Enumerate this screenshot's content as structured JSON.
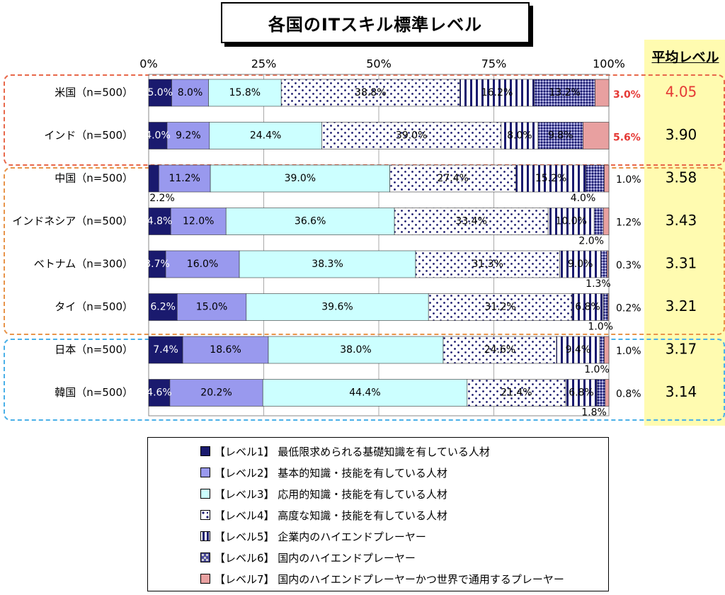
{
  "title": "各国のITスキル標準レベル",
  "avg_header": "平均レベル",
  "colors": {
    "l1": "#1a1a6e",
    "l2": "#9999ee",
    "l3": "#ccffff",
    "l4_dot": "#1a1a6e",
    "l5_stripe": "#1a1a6e",
    "l6_fill": "#4a4a9a",
    "l7": "#e8a0a0",
    "group_usa_india": "#e8684a",
    "group_asia": "#e8944a",
    "group_japan_korea": "#4ab0e8",
    "avg_panel": "#fffbb0",
    "highlight_red": "#e53935"
  },
  "chart_data": {
    "type": "bar",
    "orientation": "horizontal",
    "stacked": true,
    "percent": true,
    "title": "各国のITスキル標準レベル",
    "xlim": [
      0,
      100
    ],
    "x_ticks": [
      "0%",
      "25%",
      "50%",
      "75%",
      "100%"
    ],
    "categories": [
      "米国（n=500）",
      "インド（n=500）",
      "中国（n=500）",
      "インドネシア（n=500）",
      "ベトナム（n=300）",
      "タイ（n=500）",
      "日本（n=500）",
      "韓国（n=500）"
    ],
    "series": [
      {
        "name": "【レベル1】 最低限求められる基礎知識を有している人材",
        "values": [
          5.0,
          4.0,
          2.2,
          4.8,
          3.7,
          6.2,
          7.4,
          4.6
        ]
      },
      {
        "name": "【レベル2】 基本的知識・技能を有している人材",
        "values": [
          8.0,
          9.2,
          11.2,
          12.0,
          16.0,
          15.0,
          18.6,
          20.2
        ]
      },
      {
        "name": "【レベル3】 応用的知識・技能を有している人材",
        "values": [
          15.8,
          24.4,
          39.0,
          36.6,
          38.3,
          39.6,
          38.0,
          44.4
        ]
      },
      {
        "name": "【レベル4】 高度な知識・技能を有している人材",
        "values": [
          38.8,
          39.0,
          27.4,
          33.4,
          31.3,
          31.2,
          24.6,
          21.4
        ]
      },
      {
        "name": "【レベル5】 企業内のハイエンドプレーヤー",
        "values": [
          16.2,
          8.0,
          15.2,
          10.0,
          9.0,
          6.8,
          9.4,
          6.8
        ]
      },
      {
        "name": "【レベル6】 国内のハイエンドプレーヤー",
        "values": [
          13.2,
          9.8,
          4.0,
          2.0,
          1.3,
          1.0,
          1.0,
          1.8
        ]
      },
      {
        "name": "【レベル7】 国内のハイエンドプレーヤーかつ世界で通用するプレーヤー",
        "values": [
          3.0,
          5.6,
          1.0,
          1.2,
          0.3,
          0.2,
          1.0,
          0.8
        ]
      }
    ],
    "average_level": [
      "4.05",
      "3.90",
      "3.58",
      "3.43",
      "3.31",
      "3.21",
      "3.17",
      "3.14"
    ],
    "labels": [
      [
        "5.0%",
        "8.0%",
        "15.8%",
        "38.8%",
        "16.2%",
        "13.2%",
        "3.0%"
      ],
      [
        "4.0%",
        "9.2%",
        "24.4%",
        "39.0%",
        "8.0%",
        "9.8%",
        "5.6%"
      ],
      [
        "2.2%",
        "11.2%",
        "39.0%",
        "27.4%",
        "15.2%",
        "4.0%",
        "1.0%"
      ],
      [
        "4.8%",
        "12.0%",
        "36.6%",
        "33.4%",
        "10.0%",
        "2.0%",
        "1.2%"
      ],
      [
        "3.7%",
        "16.0%",
        "38.3%",
        "31.3%",
        "9.0%",
        "1.3%",
        "0.3%"
      ],
      [
        "6.2%",
        "15.0%",
        "39.6%",
        "31.2%",
        "6.8%",
        "1.0%",
        "0.2%"
      ],
      [
        "7.4%",
        "18.6%",
        "38.0%",
        "24.6%",
        "9.4%",
        "1.0%",
        "1.0%"
      ],
      [
        "4.6%",
        "20.2%",
        "44.4%",
        "21.4%",
        "6.8%",
        "1.8%",
        "0.8%"
      ]
    ],
    "highlight": {
      "average_rows": [
        0
      ],
      "level7_rows": [
        0,
        1
      ]
    }
  },
  "legend": [
    {
      "key": "l1",
      "label": "【レベル1】 最低限求められる基礎知識を有している人材"
    },
    {
      "key": "l2",
      "label": "【レベル2】 基本的知識・技能を有している人材"
    },
    {
      "key": "l3",
      "label": "【レベル3】 応用的知識・技能を有している人材"
    },
    {
      "key": "l4",
      "label": "【レベル4】 高度な知識・技能を有している人材"
    },
    {
      "key": "l5",
      "label": "【レベル5】 企業内のハイエンドプレーヤー"
    },
    {
      "key": "l6",
      "label": "【レベル6】 国内のハイエンドプレーヤー"
    },
    {
      "key": "l7",
      "label": "【レベル7】 国内のハイエンドプレーヤーかつ世界で通用するプレーヤー"
    }
  ]
}
